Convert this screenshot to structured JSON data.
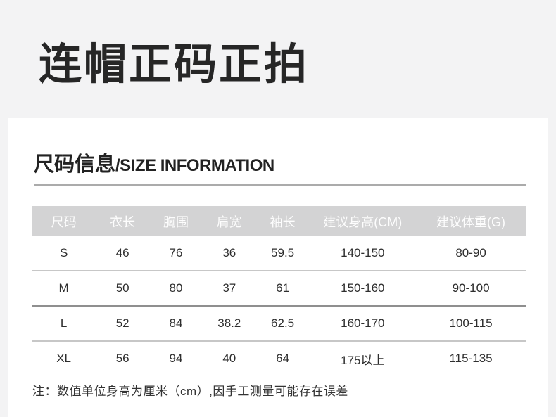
{
  "page": {
    "title": "连帽正码正拍",
    "section": {
      "title_cn": "尺码信息",
      "title_en": "/SIZE INFORMATION"
    },
    "note": "注：数值单位身高为厘米（cm）,因手工测量可能存在误差"
  },
  "colors": {
    "page_background": "#f3f3f4",
    "card_background": "#ffffff",
    "table_header_background": "#d3d3d4",
    "table_header_text": "#fdfdfd",
    "body_text": "#2e2e2e",
    "title_text": "#262626"
  },
  "size_table": {
    "headers": [
      "尺码",
      "衣长",
      "胸围",
      "肩宽",
      "袖长",
      "建议身高(CM)",
      "建议体重(G)"
    ],
    "rows": [
      [
        "S",
        "46",
        "76",
        "36",
        "59.5",
        "140-150",
        "80-90"
      ],
      [
        "M",
        "50",
        "80",
        "37",
        "61",
        "150-160",
        "90-100"
      ],
      [
        "L",
        "52",
        "84",
        "38.2",
        "62.5",
        "160-170",
        "100-115"
      ],
      [
        "XL",
        "56",
        "94",
        "40",
        "64",
        "175以上",
        "115-135"
      ]
    ]
  }
}
